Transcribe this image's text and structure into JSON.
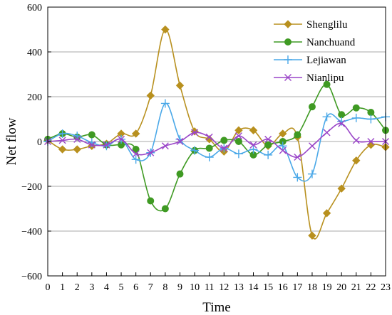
{
  "chart_data": {
    "type": "line",
    "xlabel": "Time",
    "ylabel": "Net flow",
    "xlim": [
      0,
      23
    ],
    "ylim": [
      -600,
      600
    ],
    "x_ticks": [
      0,
      1,
      2,
      3,
      4,
      5,
      6,
      7,
      8,
      9,
      10,
      11,
      12,
      13,
      14,
      15,
      16,
      17,
      18,
      19,
      20,
      21,
      22,
      23
    ],
    "y_ticks": [
      -600,
      -400,
      -200,
      0,
      200,
      400,
      600
    ],
    "grid": "horizontal",
    "legend_position": "top-right",
    "x": [
      0,
      1,
      2,
      3,
      4,
      5,
      6,
      7,
      8,
      9,
      10,
      11,
      12,
      13,
      14,
      15,
      16,
      17,
      18,
      19,
      20,
      21,
      22,
      23
    ],
    "series": [
      {
        "name": "Shenglilu",
        "color": "#b8901e",
        "marker": "diamond",
        "values": [
          5,
          -35,
          -35,
          -20,
          -10,
          35,
          35,
          205,
          500,
          250,
          45,
          10,
          -45,
          50,
          50,
          -20,
          35,
          20,
          -420,
          -320,
          -210,
          -85,
          -15,
          -25
        ]
      },
      {
        "name": "Nanchuand",
        "color": "#3f9a23",
        "marker": "circle",
        "values": [
          10,
          35,
          20,
          30,
          -15,
          -15,
          -35,
          -265,
          -300,
          -145,
          -40,
          -30,
          5,
          0,
          -60,
          -15,
          0,
          30,
          155,
          255,
          120,
          150,
          130,
          50
        ]
      },
      {
        "name": "Lejiawan",
        "color": "#4aa8e8",
        "marker": "plus",
        "values": [
          0,
          35,
          25,
          -5,
          -20,
          10,
          -80,
          -50,
          170,
          10,
          -40,
          -70,
          -30,
          -55,
          -35,
          -60,
          -20,
          -160,
          -145,
          110,
          90,
          105,
          100,
          110
        ]
      },
      {
        "name": "Nianlipu",
        "color": "#9a45c8",
        "marker": "x",
        "values": [
          0,
          5,
          10,
          -15,
          -15,
          10,
          -55,
          -50,
          -20,
          0,
          40,
          20,
          -30,
          25,
          -15,
          10,
          -40,
          -70,
          -20,
          40,
          80,
          5,
          0,
          0
        ]
      }
    ]
  }
}
